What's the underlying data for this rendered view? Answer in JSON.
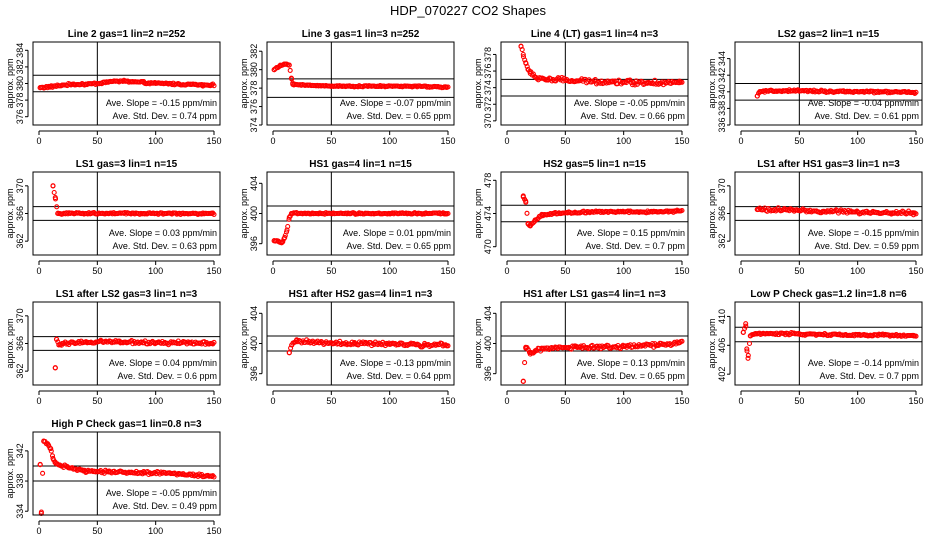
{
  "figure_title": "HDP_070227  CO2 Shapes",
  "chart_data": [
    {
      "type": "scatter",
      "title": "Line 2 gas=1 lin=2 n=252",
      "ylabel": "approx. ppm",
      "xlim": [
        0,
        150
      ],
      "ylim": [
        375,
        385
      ],
      "xticks": [
        0,
        50,
        100,
        150
      ],
      "yticks": [
        376,
        378,
        380,
        382,
        384
      ],
      "ref_lines": [
        381,
        379
      ],
      "vline_x": 50,
      "series": [
        {
          "points": [
            [
              1,
              379.5
            ],
            [
              10,
              379.6
            ],
            [
              20,
              379.8
            ],
            [
              30,
              379.9
            ],
            [
              40,
              379.9
            ],
            [
              50,
              380.0
            ],
            [
              60,
              380.2
            ],
            [
              70,
              380.3
            ],
            [
              80,
              380.2
            ],
            [
              90,
              380.1
            ],
            [
              100,
              380.0
            ],
            [
              110,
              380.0
            ],
            [
              120,
              379.9
            ],
            [
              130,
              379.9
            ],
            [
              140,
              379.8
            ],
            [
              148,
              379.8
            ]
          ],
          "noise": 0.15,
          "start": 1
        }
      ],
      "annotations": [
        "Ave. Slope =  -0.15  ppm/min",
        "Ave. Std. Dev. =  0.74  ppm"
      ]
    },
    {
      "type": "scatter",
      "title": "Line 3 gas=1 lin=3 n=252",
      "ylabel": "approx. ppm",
      "xlim": [
        0,
        150
      ],
      "ylim": [
        374,
        383
      ],
      "xticks": [
        0,
        50,
        100,
        150
      ],
      "yticks": [
        374,
        376,
        378,
        380,
        382
      ],
      "ref_lines": [
        379,
        377
      ],
      "vline_x": 50,
      "series": [
        {
          "points": [
            [
              1,
              380.0
            ],
            [
              6,
              380.4
            ],
            [
              10,
              380.6
            ],
            [
              14,
              380.5
            ],
            [
              16,
              379.0
            ],
            [
              17,
              378.4
            ],
            [
              30,
              378.3
            ],
            [
              60,
              378.2
            ],
            [
              90,
              378.2
            ],
            [
              120,
              378.2
            ],
            [
              148,
              378.1
            ]
          ],
          "noise": 0.08,
          "start": 1
        }
      ],
      "annotations": [
        "Ave. Slope =  -0.07  ppm/min",
        "Ave. Std. Dev. =  0.65  ppm"
      ]
    },
    {
      "type": "scatter",
      "title": "Line 4 (LT) gas=1 lin=4 n=3",
      "ylabel": "approx. ppm",
      "xlim": [
        0,
        150
      ],
      "ylim": [
        369.5,
        379.5
      ],
      "xticks": [
        0,
        50,
        100,
        150
      ],
      "yticks": [
        370,
        372,
        374,
        376,
        378
      ],
      "ref_lines": [
        375,
        373
      ],
      "vline_x": 50,
      "series": [
        {
          "points": [
            [
              12,
              379.0
            ],
            [
              14,
              378.0
            ],
            [
              16,
              377.0
            ],
            [
              18,
              376.2
            ],
            [
              20,
              375.7
            ],
            [
              25,
              375.2
            ],
            [
              35,
              375.0
            ],
            [
              60,
              374.8
            ],
            [
              90,
              374.7
            ],
            [
              120,
              374.6
            ],
            [
              148,
              374.6
            ]
          ],
          "noise": 0.35,
          "start": 12
        }
      ],
      "annotations": [
        "Ave. Slope =  -0.05  ppm/min",
        "Ave. Std. Dev. =  0.66  ppm"
      ]
    },
    {
      "type": "scatter",
      "title": "LS2 gas=2 lin=1 n=15",
      "ylabel": "approx. ppm",
      "xlim": [
        0,
        150
      ],
      "ylim": [
        336,
        346
      ],
      "xticks": [
        0,
        50,
        100,
        150
      ],
      "yticks": [
        336,
        338,
        340,
        342,
        344
      ],
      "ref_lines": [
        341,
        339
      ],
      "vline_x": 50,
      "series": [
        {
          "points": [
            [
              14,
              339.5
            ],
            [
              16,
              340.0
            ],
            [
              30,
              340.1
            ],
            [
              60,
              340.1
            ],
            [
              90,
              340.0
            ],
            [
              120,
              340.0
            ],
            [
              148,
              339.9
            ]
          ],
          "noise": 0.15,
          "start": 14
        }
      ],
      "annotations": [
        "Ave. Slope =  -0.04  ppm/min",
        "Ave. Std. Dev. =  0.61  ppm"
      ]
    },
    {
      "type": "scatter",
      "title": "LS1 gas=3 lin=1 n=15",
      "ylabel": "approx. ppm",
      "xlim": [
        0,
        150
      ],
      "ylim": [
        360,
        372
      ],
      "xticks": [
        0,
        50,
        100,
        150
      ],
      "yticks": [
        362,
        366,
        370
      ],
      "ref_lines": [
        367,
        365
      ],
      "vline_x": 50,
      "series": [
        {
          "points": [
            [
              12,
              370.0
            ],
            [
              14,
              368.3
            ],
            [
              16,
              366.0
            ],
            [
              30,
              366.0
            ],
            [
              60,
              366.0
            ],
            [
              90,
              366.0
            ],
            [
              120,
              366.0
            ],
            [
              148,
              366.0
            ]
          ],
          "noise": 0.15,
          "start": 12
        }
      ],
      "annotations": [
        "Ave. Slope =  0.03  ppm/min",
        "Ave. Std. Dev. =  0.63  ppm"
      ]
    },
    {
      "type": "scatter",
      "title": "HS1 gas=4 lin=1 n=15",
      "ylabel": "approx. ppm",
      "xlim": [
        0,
        150
      ],
      "ylim": [
        394.5,
        405.5
      ],
      "xticks": [
        0,
        50,
        100,
        150
      ],
      "yticks": [
        396,
        400,
        404
      ],
      "ref_lines": [
        401,
        399
      ],
      "vline_x": 50,
      "series": [
        {
          "points": [
            [
              1,
              396.4
            ],
            [
              5,
              396.3
            ],
            [
              8,
              396.2
            ],
            [
              10,
              396.8
            ],
            [
              12,
              397.8
            ],
            [
              14,
              399.5
            ],
            [
              16,
              400.0
            ],
            [
              40,
              400.0
            ],
            [
              70,
              400.0
            ],
            [
              100,
              400.0
            ],
            [
              130,
              400.0
            ],
            [
              148,
              400.0
            ]
          ],
          "noise": 0.12,
          "start": 1
        }
      ],
      "annotations": [
        "Ave. Slope =  0.01  ppm/min",
        "Ave. Std. Dev. =  0.65  ppm"
      ]
    },
    {
      "type": "scatter",
      "title": "HS2 gas=5 lin=1 n=15",
      "ylabel": "approx. ppm",
      "xlim": [
        0,
        150
      ],
      "ylim": [
        469,
        479
      ],
      "xticks": [
        0,
        50,
        100,
        150
      ],
      "yticks": [
        470,
        474,
        478
      ],
      "ref_lines": [
        475,
        473
      ],
      "vline_x": 50,
      "series": [
        {
          "points": [
            [
              14,
              476.0
            ],
            [
              16,
              475.5
            ],
            [
              18,
              472.8
            ],
            [
              20,
              472.5
            ],
            [
              24,
              473.2
            ],
            [
              30,
              473.8
            ],
            [
              40,
              474.0
            ],
            [
              70,
              474.2
            ],
            [
              100,
              474.2
            ],
            [
              130,
              474.2
            ],
            [
              148,
              474.3
            ]
          ],
          "noise": 0.14,
          "start": 14
        }
      ],
      "annotations": [
        "Ave. Slope =  0.15  ppm/min",
        "Ave. Std. Dev. =  0.7  ppm"
      ]
    },
    {
      "type": "scatter",
      "title": "LS1 after HS1 gas=3 lin=1 n=3",
      "ylabel": "approx. ppm",
      "xlim": [
        0,
        150
      ],
      "ylim": [
        360,
        372
      ],
      "xticks": [
        0,
        50,
        100,
        150
      ],
      "yticks": [
        362,
        366,
        370
      ],
      "ref_lines": [
        367,
        365
      ],
      "vline_x": 50,
      "series": [
        {
          "points": [
            [
              14,
              366.6
            ],
            [
              40,
              366.5
            ],
            [
              70,
              366.3
            ],
            [
              100,
              366.2
            ],
            [
              130,
              366.1
            ],
            [
              148,
              366.1
            ]
          ],
          "noise": 0.3,
          "start": 14
        }
      ],
      "annotations": [
        "Ave. Slope =  -0.15  ppm/min",
        "Ave. Std. Dev. =  0.59  ppm"
      ]
    },
    {
      "type": "scatter",
      "title": "LS1 after LS2 gas=3 lin=1 n=3",
      "ylabel": "approx. ppm",
      "xlim": [
        0,
        150
      ],
      "ylim": [
        360,
        372
      ],
      "xticks": [
        0,
        50,
        100,
        150
      ],
      "yticks": [
        362,
        366,
        370
      ],
      "ref_lines": [
        367,
        365
      ],
      "vline_x": 50,
      "series": [
        {
          "points": [
            [
              14,
              362.5
            ],
            [
              15,
              366.6
            ],
            [
              17,
              365.8
            ],
            [
              20,
              366.0
            ],
            [
              40,
              366.2
            ],
            [
              70,
              366.2
            ],
            [
              100,
              366.1
            ],
            [
              130,
              366.1
            ],
            [
              148,
              366.0
            ]
          ],
          "noise": 0.28,
          "start": 14
        }
      ],
      "annotations": [
        "Ave. Slope =  0.04  ppm/min",
        "Ave. Std. Dev. =  0.6  ppm"
      ]
    },
    {
      "type": "scatter",
      "title": "HS1 after HS2 gas=4 lin=1 n=3",
      "ylabel": "approx. ppm",
      "xlim": [
        0,
        150
      ],
      "ylim": [
        394.5,
        405.5
      ],
      "xticks": [
        0,
        50,
        100,
        150
      ],
      "yticks": [
        396,
        400,
        404
      ],
      "ref_lines": [
        401,
        399
      ],
      "vline_x": 50,
      "series": [
        {
          "points": [
            [
              14,
              398.8
            ],
            [
              16,
              399.8
            ],
            [
              20,
              400.4
            ],
            [
              40,
              400.1
            ],
            [
              70,
              400.0
            ],
            [
              100,
              399.9
            ],
            [
              130,
              399.8
            ],
            [
              148,
              399.8
            ]
          ],
          "noise": 0.28,
          "start": 14
        }
      ],
      "annotations": [
        "Ave. Slope =  -0.13  ppm/min",
        "Ave. Std. Dev. =  0.64  ppm"
      ]
    },
    {
      "type": "scatter",
      "title": "HS1 after LS1 gas=4 lin=1 n=3",
      "ylabel": "approx. ppm",
      "xlim": [
        0,
        150
      ],
      "ylim": [
        394.5,
        405.5
      ],
      "xticks": [
        0,
        50,
        100,
        150
      ],
      "yticks": [
        396,
        400,
        404
      ],
      "ref_lines": [
        401,
        399
      ],
      "vline_x": 50,
      "series": [
        {
          "points": [
            [
              14,
              395.0
            ],
            [
              16,
              399.5
            ],
            [
              18,
              399.2
            ],
            [
              20,
              398.6
            ],
            [
              24,
              399.0
            ],
            [
              30,
              399.3
            ],
            [
              60,
              399.5
            ],
            [
              100,
              399.6
            ],
            [
              130,
              399.8
            ],
            [
              148,
              400.1
            ]
          ],
          "noise": 0.28,
          "start": 14
        }
      ],
      "annotations": [
        "Ave. Slope =  0.13  ppm/min",
        "Ave. Std. Dev. =  0.65  ppm"
      ]
    },
    {
      "type": "scatter",
      "title": "Low P Check gas=1.2 lin=1.8 n=6",
      "ylabel": "approx. ppm",
      "xlim": [
        0,
        150
      ],
      "ylim": [
        400.5,
        412
      ],
      "xticks": [
        0,
        50,
        100,
        150
      ],
      "yticks": [
        402,
        406,
        410
      ],
      "ref_lines": [
        408.5,
        406.5
      ],
      "vline_x": 50,
      "series": [
        {
          "points": [
            [
              2,
              407.8
            ],
            [
              4,
              409.0
            ],
            [
              5,
              405.5
            ],
            [
              6,
              404.2
            ],
            [
              8,
              407.3
            ],
            [
              12,
              407.6
            ],
            [
              40,
              407.6
            ],
            [
              70,
              407.5
            ],
            [
              100,
              407.4
            ],
            [
              130,
              407.4
            ],
            [
              148,
              407.3
            ]
          ],
          "noise": 0.18,
          "start": 2
        }
      ],
      "annotations": [
        "Ave. Slope =  -0.14  ppm/min",
        "Ave. Std. Dev. =  0.7  ppm"
      ]
    },
    {
      "type": "scatter",
      "title": "High P Check gas=1 lin=0.8 n=3",
      "ylabel": "approx. ppm",
      "xlim": [
        0,
        150
      ],
      "ylim": [
        333.5,
        344.5
      ],
      "xticks": [
        0,
        50,
        100,
        150
      ],
      "yticks": [
        334,
        338,
        342
      ],
      "ref_lines": [
        340,
        338
      ],
      "vline_x": 50,
      "series": [
        {
          "points": [
            [
              1,
              340.2
            ],
            [
              2,
              333.7
            ],
            [
              4,
              343.3
            ],
            [
              8,
              342.8
            ],
            [
              10,
              342.3
            ],
            [
              12,
              341.0
            ],
            [
              14,
              340.5
            ],
            [
              18,
              340.1
            ],
            [
              25,
              339.8
            ],
            [
              40,
              339.3
            ],
            [
              60,
              339.2
            ],
            [
              90,
              339.1
            ],
            [
              120,
              339.0
            ],
            [
              148,
              338.6
            ]
          ],
          "noise": 0.22,
          "start": 1
        }
      ],
      "annotations": [
        "Ave. Slope =  -0.05  ppm/min",
        "Ave. Std. Dev. =  0.49  ppm"
      ]
    }
  ]
}
